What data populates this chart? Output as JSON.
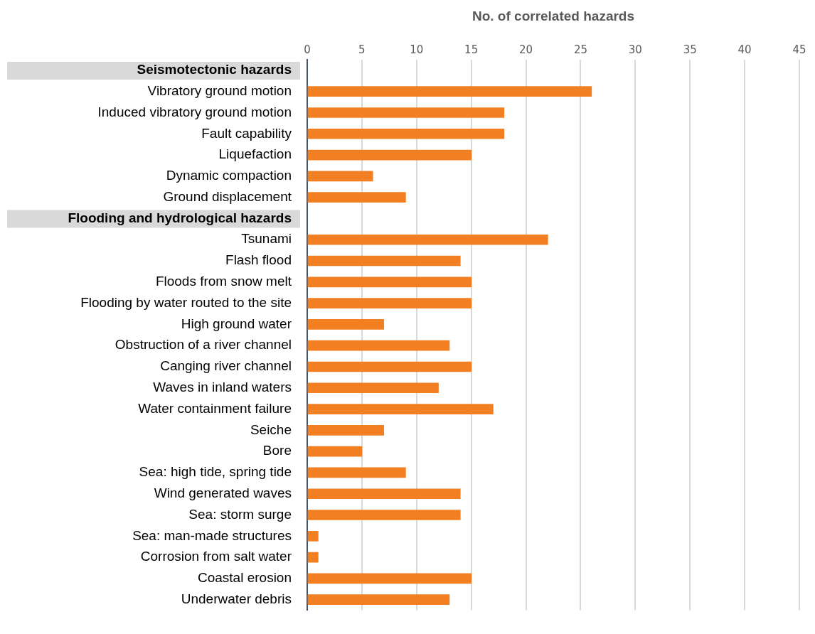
{
  "chart_data": {
    "type": "bar",
    "orientation": "horizontal",
    "xlabel": "No. of correlated hazards",
    "categories": [
      "Seismotectonic hazards",
      "Vibratory ground motion",
      "Induced vibratory ground motion",
      "Fault capability",
      "Liquefaction",
      "Dynamic compaction",
      "Ground displacement",
      "Flooding and hydrological hazards",
      "Tsunami",
      "Flash flood",
      "Floods from snow melt",
      "Flooding by water routed to the site",
      "High ground water",
      "Obstruction of a river channel",
      "Canging river channel",
      "Waves in inland waters",
      "Water containment failure",
      "Seiche",
      "Bore",
      "Sea: high tide, spring tide",
      "Wind generated waves",
      "Sea: storm surge",
      "Sea: man-made structures",
      "Corrosion from salt water",
      "Coastal erosion",
      "Underwater debris"
    ],
    "values": [
      null,
      26,
      18,
      18,
      15,
      6,
      9,
      null,
      22,
      14,
      15,
      15,
      7,
      13,
      15,
      12,
      17,
      7,
      5,
      9,
      14,
      14,
      1,
      1,
      15,
      13
    ],
    "color": "#f28023",
    "xlim": [
      0,
      45
    ],
    "xticks": [
      0,
      5,
      10,
      15,
      20,
      25,
      30,
      35,
      40,
      45
    ],
    "grid": "x",
    "legend": false
  }
}
